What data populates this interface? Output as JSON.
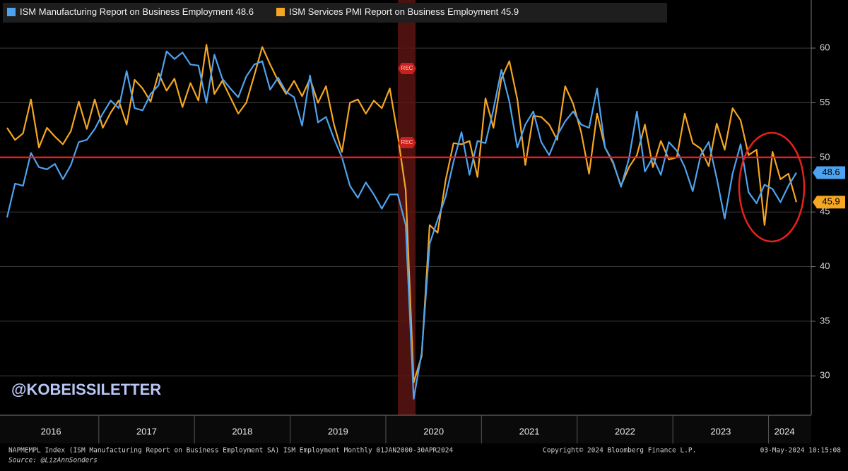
{
  "chart_data": {
    "type": "line",
    "categories": [
      null,
      null,
      null,
      null,
      null,
      null,
      "2016",
      null,
      null,
      null,
      null,
      null,
      null,
      null,
      null,
      null,
      null,
      null,
      "2017",
      null,
      null,
      null,
      null,
      null,
      null,
      null,
      null,
      null,
      null,
      null,
      "2018",
      null,
      null,
      null,
      null,
      null,
      null,
      null,
      null,
      null,
      null,
      null,
      "2019",
      null,
      null,
      null,
      null,
      null,
      null,
      null,
      null,
      null,
      null,
      null,
      "2020",
      null,
      null,
      null,
      null,
      null,
      null,
      null,
      null,
      null,
      null,
      null,
      "2021",
      null,
      null,
      null,
      null,
      null,
      null,
      null,
      null,
      null,
      null,
      null,
      "2022",
      null,
      null,
      null,
      null,
      null,
      null,
      null,
      null,
      null,
      null,
      null,
      "2023",
      null,
      null,
      null,
      null,
      null,
      null,
      null,
      "2024",
      null
    ],
    "series": [
      {
        "name": "ISM Manufacturing Report on Business Employment",
        "color": "#4ea3f0",
        "values": [
          44.5,
          47.6,
          47.4,
          50.4,
          49.1,
          48.9,
          49.4,
          48.0,
          49.3,
          51.4,
          51.6,
          52.6,
          54.0,
          55.2,
          54.5,
          57.9,
          54.5,
          54.3,
          55.8,
          56.6,
          59.7,
          59.0,
          59.6,
          58.5,
          58.4,
          55.0,
          59.4,
          57.2,
          56.3,
          55.5,
          57.4,
          58.5,
          58.8,
          56.2,
          57.3,
          56.0,
          55.5,
          52.9,
          57.5,
          53.2,
          53.7,
          51.7,
          50.0,
          47.4,
          46.3,
          47.7,
          46.6,
          45.3,
          46.6,
          46.6,
          43.8,
          27.9,
          32.1,
          42.1,
          44.3,
          46.4,
          49.6,
          52.3,
          48.4,
          51.5,
          51.3,
          54.4,
          58.0,
          55.1,
          50.9,
          53.0,
          54.2,
          51.4,
          50.2,
          52.0,
          53.3,
          54.2,
          53.0,
          52.7,
          56.3,
          50.9,
          49.6,
          47.3,
          49.9,
          54.2,
          48.7,
          50.0,
          48.4,
          51.4,
          50.6,
          49.1,
          46.9,
          50.2,
          51.4,
          48.1,
          44.4,
          48.5,
          51.2,
          46.8,
          45.8,
          47.5,
          47.1,
          45.9,
          47.4,
          48.6
        ]
      },
      {
        "name": "ISM Services PMI Report on Business Employment",
        "color": "#f5a623",
        "values": [
          52.7,
          51.6,
          52.2,
          55.3,
          50.9,
          52.7,
          51.9,
          51.2,
          52.4,
          55.1,
          52.6,
          55.3,
          52.7,
          54.1,
          55.2,
          53.0,
          57.1,
          56.3,
          55.1,
          57.7,
          56.1,
          57.2,
          54.6,
          56.8,
          55.2,
          60.3,
          55.8,
          57.0,
          55.5,
          54.0,
          55.0,
          57.5,
          60.1,
          58.5,
          57.0,
          55.8,
          57.0,
          55.6,
          57.2,
          55.0,
          56.5,
          53.0,
          50.5,
          55.0,
          55.3,
          54.0,
          55.2,
          54.5,
          56.3,
          52.0,
          47.0,
          29.4,
          31.8,
          43.8,
          43.1,
          47.9,
          51.3,
          51.2,
          51.5,
          48.2,
          55.4,
          52.7,
          57.2,
          58.8,
          55.3,
          49.3,
          53.8,
          53.7,
          53.0,
          51.6,
          56.5,
          54.9,
          52.3,
          48.5,
          54.0,
          50.9,
          49.5,
          47.4,
          49.1,
          50.2,
          53.0,
          49.1,
          51.5,
          49.8,
          50.0,
          54.0,
          51.3,
          50.8,
          49.2,
          53.1,
          50.7,
          54.5,
          53.4,
          50.2,
          50.7,
          43.8,
          50.5,
          48.0,
          48.5,
          45.9
        ]
      }
    ],
    "ylim": [
      26.4,
      64.4
    ],
    "yticks": [
      30,
      35,
      40,
      45,
      50,
      55,
      60
    ],
    "grid": true,
    "reference_line": 50,
    "reference_color": "#e4211c",
    "recession_label": "REC",
    "watermark": "@KOBEISSILETTER",
    "footnote": "NAPMEMPL Index (ISM Manufacturing Report on Business Employment SA) ISM Employment  Monthly 01JAN2000-30APR2024",
    "copyright": "Copyright© 2024 Bloomberg Finance L.P.",
    "timestamp": "03-May-2024 10:15:08",
    "source": "Source: @LizAnnSonders"
  }
}
